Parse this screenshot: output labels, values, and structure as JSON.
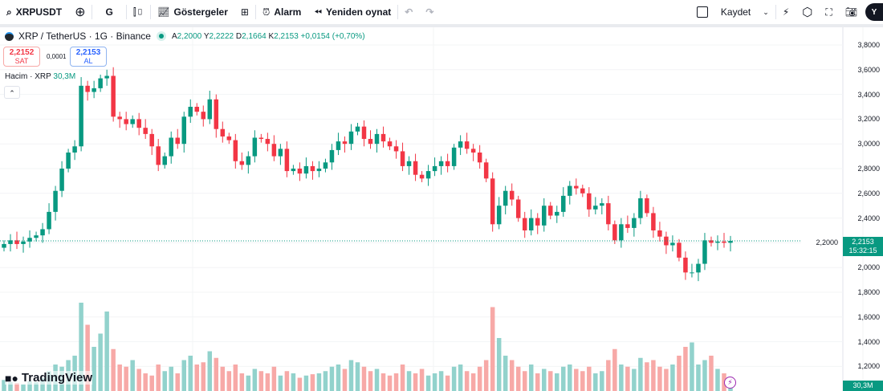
{
  "toolbar": {
    "symbol": "XRPUSDT",
    "interval": "G",
    "indicators": "Göstergeler",
    "alarm": "Alarm",
    "replay": "Yeniden oynat",
    "save": "Kaydet",
    "avatar": "Y"
  },
  "legend": {
    "title": "XRP / TetherUS · 1G · Binance",
    "o_label": "A",
    "o": "2,2000",
    "h_label": "Y",
    "h": "2,2222",
    "l_label": "D",
    "l": "2,1664",
    "c_label": "K",
    "c": "2,2153",
    "change": "+0,0154 (+0,70%)"
  },
  "trade": {
    "sell_price": "2,2152",
    "sell_label": "SAT",
    "spread": "0,0001",
    "buy_price": "2,2153",
    "buy_label": "AL"
  },
  "volume": {
    "label": "Hacim · XRP",
    "value": "30,3M"
  },
  "price_tag": {
    "price": "2,2153",
    "countdown": "15:32:15"
  },
  "volume_tag": "30,3M",
  "logo": "TradingView",
  "colors": {
    "up": "#089981",
    "down": "#f23645",
    "up_vol": "#92d2cc",
    "down_vol": "#f7a9a7"
  },
  "chart_data": {
    "type": "candlestick",
    "y_ticks": [
      "3,8000",
      "3,6000",
      "3,4000",
      "3,2000",
      "3,0000",
      "2,8000",
      "2,6000",
      "2,4000",
      "2,2000",
      "2,0000",
      "1,8000",
      "1,6000",
      "1,4000",
      "1,2000"
    ],
    "y_range": [
      1.1,
      3.85
    ],
    "close": [
      2.19,
      2.22,
      2.19,
      2.21,
      2.24,
      2.26,
      2.31,
      2.45,
      2.62,
      2.8,
      2.93,
      2.98,
      3.47,
      3.42,
      3.45,
      3.53,
      3.55,
      3.22,
      3.2,
      3.16,
      3.2,
      3.13,
      3.08,
      2.98,
      2.83,
      2.9,
      3.05,
      3.0,
      3.22,
      3.3,
      3.26,
      3.2,
      3.36,
      3.12,
      3.06,
      3.03,
      2.86,
      2.83,
      2.9,
      3.05,
      3.04,
      3.0,
      2.9,
      2.96,
      2.78,
      2.8,
      2.76,
      2.82,
      2.78,
      2.8,
      2.85,
      2.95,
      3.02,
      3.0,
      3.1,
      3.14,
      3.04,
      3.0,
      3.08,
      3.02,
      2.98,
      2.94,
      2.82,
      2.86,
      2.75,
      2.72,
      2.78,
      2.82,
      2.86,
      2.82,
      2.97,
      3.02,
      2.96,
      2.93,
      2.85,
      2.72,
      2.35,
      2.5,
      2.62,
      2.55,
      2.4,
      2.3,
      2.4,
      2.34,
      2.5,
      2.42,
      2.45,
      2.58,
      2.66,
      2.64,
      2.6,
      2.47,
      2.5,
      2.52,
      2.35,
      2.22,
      2.35,
      2.32,
      2.4,
      2.56,
      2.44,
      2.3,
      2.25,
      2.18,
      2.2,
      2.08,
      1.96,
      1.96,
      2.03,
      2.22,
      2.2,
      2.21,
      2.2,
      2.2153
    ],
    "volume_m": [
      25,
      20,
      18,
      15,
      22,
      20,
      30,
      45,
      60,
      55,
      70,
      80,
      200,
      150,
      100,
      130,
      180,
      95,
      60,
      55,
      70,
      50,
      40,
      35,
      60,
      45,
      55,
      40,
      70,
      80,
      60,
      65,
      90,
      75,
      55,
      45,
      60,
      40,
      35,
      50,
      45,
      40,
      55,
      35,
      45,
      40,
      30,
      35,
      38,
      40,
      45,
      55,
      60,
      50,
      70,
      65,
      55,
      45,
      50,
      40,
      35,
      40,
      60,
      45,
      40,
      50,
      35,
      40,
      45,
      35,
      55,
      60,
      45,
      40,
      55,
      70,
      190,
      120,
      80,
      70,
      55,
      45,
      60,
      40,
      50,
      45,
      40,
      55,
      60,
      50,
      45,
      55,
      40,
      45,
      70,
      95,
      60,
      55,
      50,
      75,
      65,
      70,
      55,
      50,
      60,
      80,
      100,
      110,
      60,
      70,
      80,
      50,
      40,
      30.3
    ]
  }
}
